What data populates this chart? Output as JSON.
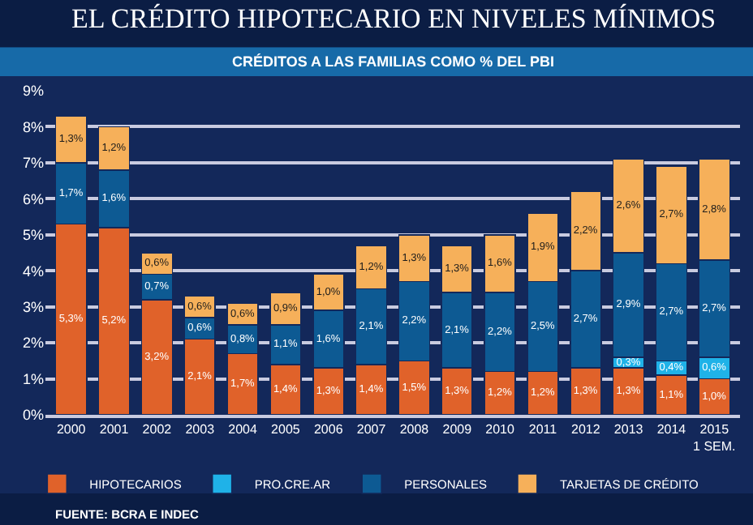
{
  "chart_data": {
    "type": "bar",
    "stacked": true,
    "title": "EL CRÉDITO HIPOTECARIO EN NIVELES MÍNIMOS",
    "subtitle": "CRÉDITOS A LAS FAMILIAS COMO % DEL PBI",
    "categories": [
      "2000",
      "2001",
      "2002",
      "2003",
      "2004",
      "2005",
      "2006",
      "2007",
      "2008",
      "2009",
      "2010",
      "2011",
      "2012",
      "2013",
      "2014",
      "2015\n1 SEM."
    ],
    "series": [
      {
        "name": "HIPOTECARIOS",
        "color": "#e0622a",
        "values": [
          5.3,
          5.2,
          3.2,
          2.1,
          1.7,
          1.4,
          1.3,
          1.4,
          1.5,
          1.3,
          1.2,
          1.2,
          1.3,
          1.3,
          1.1,
          1.0
        ],
        "value_labels": [
          "5,3%",
          "5,2%",
          "3,2%",
          "2,1%",
          "1,7%",
          "1,4%",
          "1,3%",
          "1,4%",
          "1,5%",
          "1,3%",
          "1,2%",
          "1,2%",
          "1,3%",
          "1,3%",
          "1,1%",
          "1,0%"
        ]
      },
      {
        "name": "PRO.CRE.AR",
        "color": "#1fb2e8",
        "values": [
          null,
          null,
          null,
          null,
          null,
          null,
          null,
          null,
          null,
          null,
          null,
          null,
          null,
          0.3,
          0.4,
          0.6
        ],
        "value_labels": [
          null,
          null,
          null,
          null,
          null,
          null,
          null,
          null,
          null,
          null,
          null,
          null,
          null,
          "0,3%",
          "0,4%",
          "0,6%"
        ]
      },
      {
        "name": "PERSONALES",
        "color": "#0d5a93",
        "values": [
          1.7,
          1.6,
          0.7,
          0.6,
          0.8,
          1.1,
          1.6,
          2.1,
          2.2,
          2.1,
          2.2,
          2.5,
          2.7,
          2.9,
          2.7,
          2.7
        ],
        "value_labels": [
          "1,7%",
          "1,6%",
          "0,7%",
          "0,6%",
          "0,8%",
          "1,1%",
          "1,6%",
          "2,1%",
          "2,2%",
          "2,1%",
          "2,2%",
          "2,5%",
          "2,7%",
          "2,9%",
          "2,7%",
          "2,7%"
        ]
      },
      {
        "name": "TARJETAS DE CRÉDITO",
        "color": "#f6b05a",
        "values": [
          1.3,
          1.2,
          0.6,
          0.6,
          0.6,
          0.9,
          1.0,
          1.2,
          1.3,
          1.3,
          1.6,
          1.9,
          2.2,
          2.6,
          2.7,
          2.8
        ],
        "value_labels": [
          "1,3%",
          "1,2%",
          "0,6%",
          "0,6%",
          "0,6%",
          "0,9%",
          "1,0%",
          "1,2%",
          "1,3%",
          "1,3%",
          "1,6%",
          "1,9%",
          "2,2%",
          "2,6%",
          "2,7%",
          "2,8%"
        ]
      }
    ],
    "ylim": [
      0,
      9
    ],
    "yticks": [
      {
        "value": 0,
        "label": "0%"
      },
      {
        "value": 1,
        "label": "1%"
      },
      {
        "value": 2,
        "label": "2%"
      },
      {
        "value": 3,
        "label": "3%"
      },
      {
        "value": 4,
        "label": "4%"
      },
      {
        "value": 5,
        "label": "5%"
      },
      {
        "value": 6,
        "label": "6%"
      },
      {
        "value": 7,
        "label": "7%"
      },
      {
        "value": 8,
        "label": "8%"
      },
      {
        "value": 9,
        "label": "9%"
      }
    ],
    "grid": "y",
    "legend": "bottom",
    "annotations": [
      "FUENTE: BCRA E INDEC"
    ]
  }
}
